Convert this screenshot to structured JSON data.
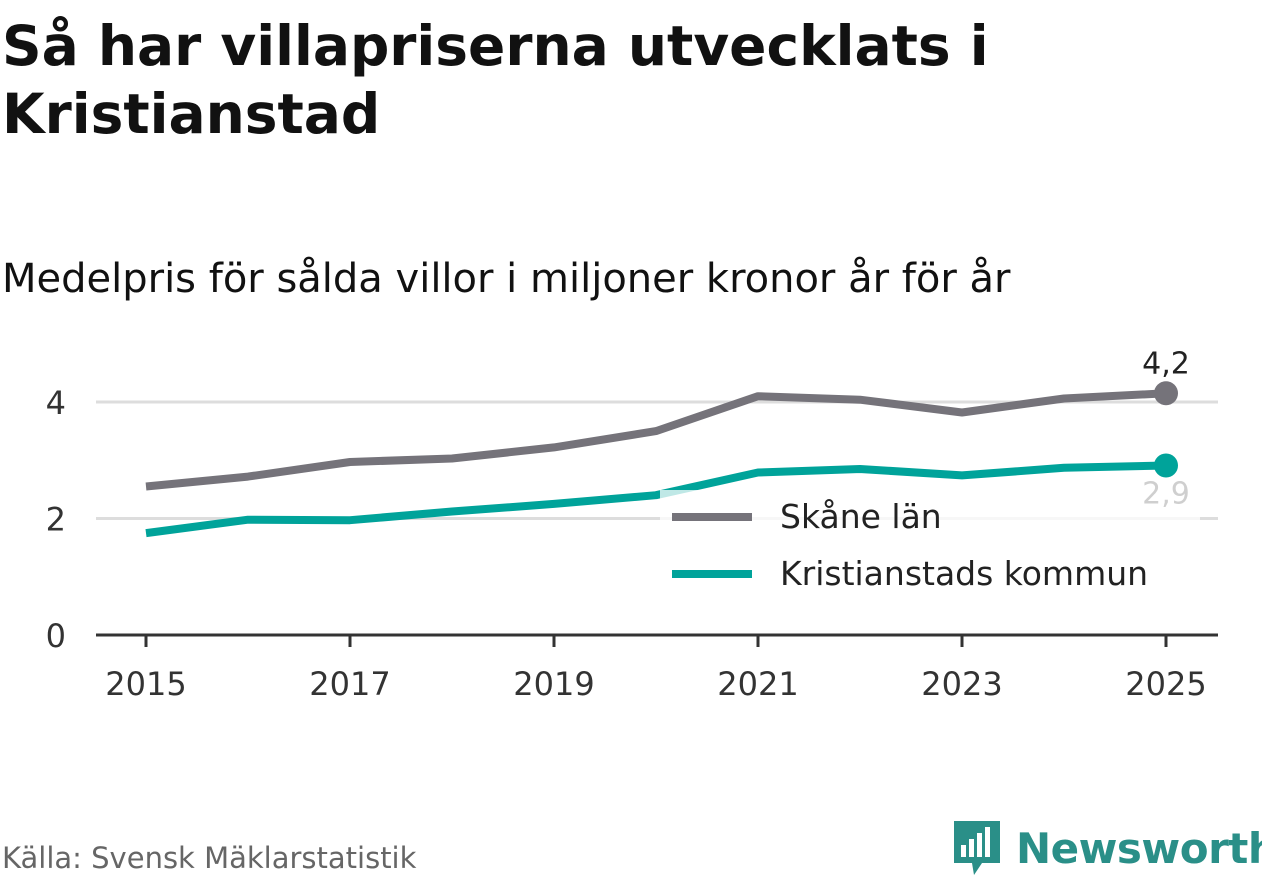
{
  "title": "Så har villapriserna utvecklats i Kristianstad",
  "subtitle": "Medelpris för sålda villor i miljoner kronor år för år",
  "source": "Källa: Svensk Mäklarstatistik",
  "brand": {
    "name": "Newsworthy",
    "icon": "newsworthy-logo-icon"
  },
  "colors": {
    "skane": "#75737a",
    "kristianstad": "#00a39a",
    "grid": "#dddddd",
    "axis": "#333333"
  },
  "chart_data": {
    "type": "line",
    "x": [
      2015,
      2016,
      2017,
      2018,
      2019,
      2020,
      2021,
      2022,
      2023,
      2024,
      2025
    ],
    "xticks": [
      "2015",
      "2017",
      "2019",
      "2021",
      "2023",
      "2025"
    ],
    "yticks": [
      "0",
      "2",
      "4"
    ],
    "ylim": [
      0,
      4.6
    ],
    "series": [
      {
        "name": "Skåne län",
        "values": [
          2.55,
          2.72,
          2.97,
          3.03,
          3.22,
          3.5,
          4.1,
          4.04,
          3.82,
          4.06,
          4.15
        ],
        "end_label": "4,2"
      },
      {
        "name": "Kristianstads kommun",
        "values": [
          1.75,
          1.98,
          1.97,
          2.12,
          2.25,
          2.4,
          2.79,
          2.85,
          2.74,
          2.87,
          2.91
        ],
        "end_label": "2,9"
      }
    ],
    "legend_position": "lower-right",
    "xlabel": "",
    "ylabel": ""
  }
}
